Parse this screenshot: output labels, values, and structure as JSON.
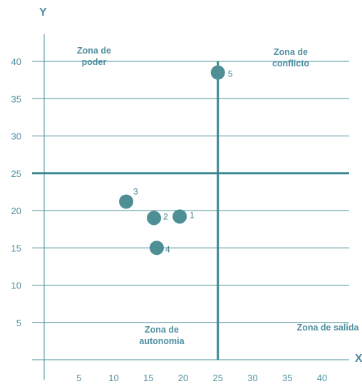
{
  "chart_data": {
    "type": "scatter",
    "xlabel": "X",
    "ylabel": "Y",
    "x_ticks": [
      5,
      10,
      15,
      20,
      25,
      30,
      35,
      40
    ],
    "y_ticks": [
      5,
      10,
      15,
      20,
      25,
      30,
      35,
      40
    ],
    "xlim": [
      0,
      42.5
    ],
    "ylim": [
      0,
      42
    ],
    "grid": "horizontal",
    "threshold_x": 25,
    "threshold_y": 25,
    "points": [
      {
        "label": "1",
        "x": 19.5,
        "y": 19.2
      },
      {
        "label": "2",
        "x": 15.8,
        "y": 19.0
      },
      {
        "label": "3",
        "x": 11.8,
        "y": 21.2
      },
      {
        "label": "4",
        "x": 16.2,
        "y": 15.0
      },
      {
        "label": "5",
        "x": 25.0,
        "y": 38.5
      }
    ],
    "zones": [
      {
        "lines": [
          "Zona de",
          "poder"
        ]
      },
      {
        "lines": [
          "Zona de",
          "conflicto"
        ]
      },
      {
        "lines": [
          "Zona de",
          "autonomia"
        ]
      },
      {
        "lines": [
          "Zona de salida"
        ]
      }
    ],
    "colors": {
      "axis": "#4a8f9a",
      "grid": "#4a8f9a",
      "threshold": "#3b8790",
      "point": "#4e8f96",
      "text": "#4f8fa0"
    }
  }
}
